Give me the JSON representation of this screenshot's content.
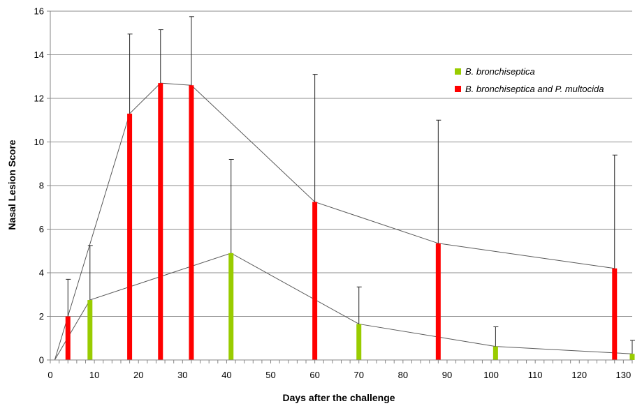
{
  "chart_data": {
    "type": "bar",
    "title": "",
    "xlabel": "Days after the challenge",
    "ylabel": "Nasal Lesion Score",
    "xlim": [
      0,
      132
    ],
    "ylim": [
      0,
      16
    ],
    "xticks": [
      0,
      10,
      20,
      30,
      40,
      50,
      60,
      70,
      80,
      90,
      100,
      110,
      120,
      130
    ],
    "yticks": [
      0,
      2,
      4,
      6,
      8,
      10,
      12,
      14,
      16
    ],
    "grid": "horizontal",
    "legend_position": "top-right",
    "series": [
      {
        "name": "B. bronchiseptica",
        "color": "#99cc00",
        "x": [
          9,
          41,
          70,
          101,
          132
        ],
        "values": [
          2.75,
          4.9,
          1.65,
          0.62,
          0.28
        ],
        "error": [
          2.5,
          4.3,
          1.7,
          0.9,
          0.62
        ],
        "trend_line": [
          [
            1,
            0
          ],
          [
            9,
            2.75
          ],
          [
            41,
            4.9
          ],
          [
            70,
            1.65
          ],
          [
            101,
            0.62
          ],
          [
            132,
            0.28
          ]
        ]
      },
      {
        "name": "B. bronchiseptica and P. multocida",
        "color": "#ff0000",
        "x": [
          4,
          18,
          25,
          32,
          60,
          88,
          128
        ],
        "values": [
          2.0,
          11.3,
          12.7,
          12.6,
          7.25,
          5.35,
          4.2
        ],
        "error": [
          1.7,
          3.65,
          2.45,
          3.15,
          5.85,
          5.65,
          5.2
        ],
        "trend_line": [
          [
            1,
            0
          ],
          [
            4,
            2.0
          ],
          [
            18,
            11.3
          ],
          [
            25,
            12.7
          ],
          [
            32,
            12.6
          ],
          [
            60,
            7.25
          ],
          [
            88,
            5.35
          ],
          [
            128,
            4.2
          ]
        ]
      }
    ]
  }
}
